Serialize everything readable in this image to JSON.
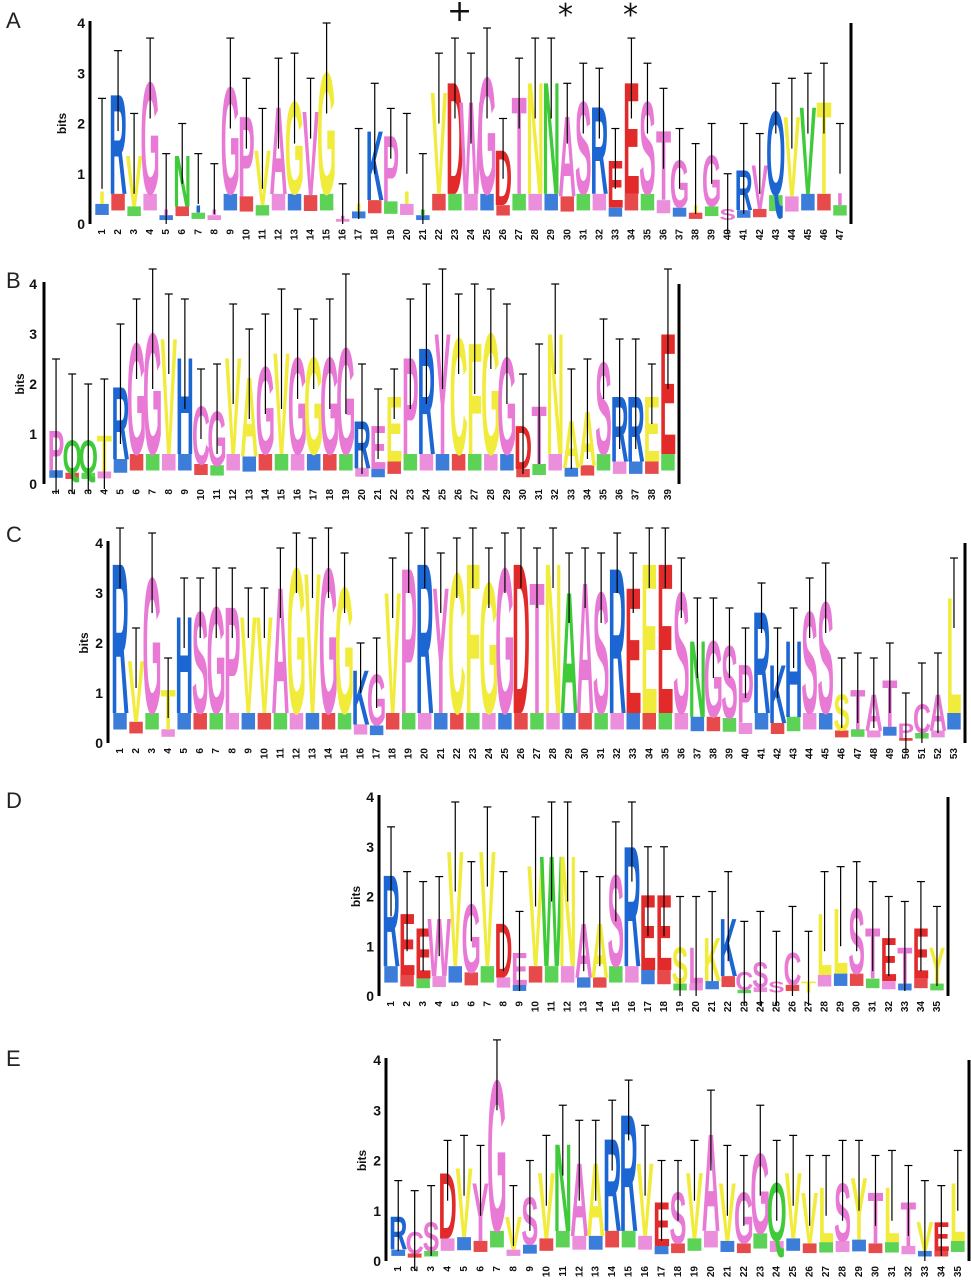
{
  "figure": {
    "annotations": {
      "plus": "+",
      "star1": "*",
      "star2": "*"
    },
    "ylabel": "bits",
    "yticks": [
      "0",
      "1",
      "2",
      "3",
      "4"
    ],
    "colors": {
      "pink": "#e87ad6",
      "yellow": "#f1ec3c",
      "blue": "#1b66d3",
      "red": "#e22a2a",
      "green": "#3fca3a",
      "black": "#000000"
    },
    "panels": [
      {
        "letter": "A",
        "n": 47,
        "top": [
          ".",
          "R",
          "V",
          "G",
          ".",
          "N",
          ".",
          ".",
          "G",
          "P",
          "V",
          "A",
          "G",
          "V",
          "G",
          ".",
          ".",
          "K",
          "P",
          ".",
          ".",
          "V",
          "D",
          "W",
          "G",
          "D",
          "T",
          "N",
          "N",
          "A",
          "S",
          "R",
          "E",
          "E",
          "S",
          "T",
          "G",
          ".",
          "G",
          "S",
          "R",
          "V",
          "Q",
          "V",
          "V",
          "T",
          "."
        ],
        "colors": [
          "yellow",
          "blue",
          "yellow",
          "pink",
          "pink",
          "green",
          "blue",
          "pink",
          "pink",
          "pink",
          "yellow",
          "pink",
          "yellow",
          "pink",
          "yellow",
          "pink",
          "yellow",
          "blue",
          "pink",
          "yellow",
          "green",
          "yellow",
          "red",
          "pink",
          "pink",
          "red",
          "pink",
          "yellow",
          "green",
          "pink",
          "pink",
          "blue",
          "red",
          "red",
          "pink",
          "pink",
          "pink",
          "yellow",
          "pink",
          "pink",
          "blue",
          "pink",
          "blue",
          "yellow",
          "green",
          "yellow",
          "pink"
        ],
        "heights": [
          1.6,
          2.65,
          1.4,
          2.9,
          0.7,
          1.4,
          0.9,
          0.7,
          2.8,
          2.2,
          1.5,
          2.4,
          2.5,
          2.3,
          3.1,
          0.4,
          1.0,
          1.9,
          1.8,
          1.6,
          0.7,
          2.7,
          2.9,
          2.5,
          3.0,
          1.5,
          2.6,
          2.9,
          2.9,
          2.2,
          2.5,
          2.4,
          1.3,
          2.9,
          2.5,
          1.9,
          1.3,
          0.9,
          1.4,
          0.3,
          1.1,
          1.2,
          2.3,
          2.2,
          2.4,
          2.5,
          1.5
        ],
        "errors": [
          0.9,
          0.8,
          0.8,
          0.8,
          0.7,
          0.6,
          0.5,
          0.5,
          0.9,
          0.7,
          0.8,
          0.9,
          0.9,
          0.6,
          0.9,
          0.4,
          0.9,
          0.9,
          0.5,
          0.6,
          0.7,
          0.7,
          0.8,
          0.9,
          0.9,
          0.6,
          0.7,
          0.8,
          0.8,
          0.6,
          0.7,
          0.7,
          0.6,
          0.8,
          0.7,
          0.8,
          0.6,
          0.7,
          0.6,
          0.7,
          0.9,
          0.6,
          0.5,
          0.7,
          0.6,
          0.7,
          0.5
        ]
      },
      {
        "letter": "B",
        "n": 39,
        "top": [
          "P",
          "Q",
          "Q",
          "T",
          "R",
          "G",
          "G",
          "V",
          "H",
          "C",
          "G",
          "V",
          "A",
          "G",
          "V",
          "G",
          "G",
          "G",
          "G",
          "R",
          "E",
          "E",
          "P",
          "R",
          "Y",
          "C",
          "F",
          "G",
          "G",
          "D",
          "T",
          "N",
          "A",
          "A",
          "S",
          "R",
          "R",
          "E",
          "E"
        ],
        "colors": [
          "pink",
          "green",
          "green",
          "yellow",
          "blue",
          "pink",
          "pink",
          "yellow",
          "blue",
          "pink",
          "pink",
          "yellow",
          "yellow",
          "pink",
          "yellow",
          "pink",
          "yellow",
          "pink",
          "pink",
          "blue",
          "pink",
          "yellow",
          "pink",
          "blue",
          "pink",
          "yellow",
          "yellow",
          "yellow",
          "pink",
          "red",
          "pink",
          "yellow",
          "yellow",
          "yellow",
          "pink",
          "blue",
          "blue",
          "yellow",
          "red"
        ],
        "heights": [
          1.1,
          0.9,
          0.9,
          1.0,
          2.0,
          2.9,
          3.1,
          3.0,
          2.6,
          1.6,
          1.5,
          2.6,
          2.2,
          2.4,
          2.7,
          2.6,
          2.6,
          2.6,
          2.8,
          1.3,
          1.2,
          1.8,
          2.6,
          2.8,
          3.1,
          3.0,
          2.9,
          3.1,
          2.6,
          1.2,
          1.6,
          3.1,
          1.3,
          1.5,
          2.5,
          1.8,
          1.8,
          1.8,
          3.1
        ],
        "errors": [
          1.4,
          1.3,
          1.1,
          1.1,
          1.2,
          0.8,
          1.2,
          0.8,
          1.1,
          0.7,
          0.9,
          1.0,
          0.9,
          1.0,
          1.2,
          0.9,
          0.7,
          1.1,
          1.4,
          1.1,
          0.7,
          0.5,
          1.1,
          1.2,
          1.2,
          0.8,
          1.1,
          0.8,
          1.0,
          1.0,
          1.2,
          0.9,
          1.0,
          1.0,
          0.8,
          1.1,
          1.1,
          0.6,
          1.2
        ]
      },
      {
        "letter": "C",
        "n": 53,
        "top": [
          "R",
          "V",
          "G",
          "T",
          "H",
          "S",
          "G",
          "P",
          "V",
          "V",
          "A",
          "G",
          "V",
          "G",
          "G",
          "K",
          "G",
          "V",
          "P",
          "R",
          "Y",
          "C",
          "F",
          "G",
          "G",
          "D",
          "T",
          "N",
          "A",
          "A",
          "S",
          "R",
          "E",
          "E",
          "E",
          "S",
          "N",
          "G",
          "S",
          "P",
          "R",
          "K",
          "H",
          "S",
          "S",
          "S",
          "T",
          "A",
          "T",
          "P",
          "C",
          "A",
          "L"
        ],
        "colors": [
          "blue",
          "yellow",
          "pink",
          "yellow",
          "blue",
          "pink",
          "pink",
          "pink",
          "yellow",
          "yellow",
          "pink",
          "yellow",
          "yellow",
          "pink",
          "yellow",
          "blue",
          "pink",
          "yellow",
          "pink",
          "blue",
          "pink",
          "yellow",
          "yellow",
          "yellow",
          "pink",
          "red",
          "pink",
          "yellow",
          "green",
          "pink",
          "pink",
          "blue",
          "red",
          "yellow",
          "red",
          "pink",
          "green",
          "pink",
          "pink",
          "pink",
          "blue",
          "blue",
          "blue",
          "pink",
          "pink",
          "yellow",
          "pink",
          "pink",
          "pink",
          "pink",
          "pink",
          "pink",
          "yellow"
        ],
        "heights": [
          3.7,
          1.7,
          3.4,
          1.1,
          2.6,
          2.7,
          2.8,
          2.8,
          2.6,
          2.6,
          3.2,
          3.6,
          3.5,
          3.6,
          3.2,
          1.5,
          1.4,
          3.1,
          3.6,
          3.7,
          3.2,
          3.5,
          3.7,
          3.3,
          3.6,
          3.7,
          3.3,
          3.7,
          3.1,
          3.3,
          3.1,
          3.6,
          3.2,
          3.7,
          3.7,
          3.1,
          2.1,
          2.1,
          2.0,
          1.6,
          2.7,
          1.6,
          2.1,
          2.7,
          2.9,
          1.0,
          1.1,
          1.0,
          1.3,
          0.4,
          0.8,
          1.0,
          3.0
        ],
        "errors": [
          0.6,
          0.6,
          0.8,
          0.6,
          0.7,
          0.6,
          0.7,
          0.7,
          0.5,
          0.5,
          0.7,
          0.6,
          0.6,
          0.7,
          0.6,
          0.5,
          0.7,
          0.6,
          0.6,
          0.6,
          0.6,
          0.6,
          0.6,
          0.6,
          0.6,
          0.6,
          0.6,
          0.6,
          0.7,
          0.6,
          0.7,
          0.6,
          0.6,
          0.6,
          0.6,
          0.6,
          0.8,
          0.8,
          0.7,
          0.7,
          0.5,
          0.7,
          0.6,
          0.6,
          0.7,
          0.7,
          0.7,
          0.7,
          0.7,
          0.6,
          0.8,
          0.8,
          0.7
        ]
      },
      {
        "letter": "D",
        "n": 35,
        "top": [
          "R",
          "E",
          "E",
          "W",
          "V",
          "G",
          "V",
          "D",
          "E",
          "V",
          "W",
          "N",
          "A",
          "A",
          "S",
          "R",
          "E",
          "E",
          "S",
          "L",
          "K",
          "K",
          "C",
          "S",
          "S",
          "C",
          "T",
          "L",
          "L",
          "S",
          "T",
          "E",
          "T",
          "E",
          "Y"
        ],
        "colors": [
          "blue",
          "red",
          "red",
          "pink",
          "yellow",
          "pink",
          "yellow",
          "red",
          "pink",
          "yellow",
          "green",
          "yellow",
          "pink",
          "yellow",
          "pink",
          "blue",
          "red",
          "red",
          "yellow",
          "pink",
          "yellow",
          "blue",
          "pink",
          "pink",
          "pink",
          "pink",
          "yellow",
          "yellow",
          "yellow",
          "pink",
          "pink",
          "red",
          "pink",
          "red",
          "yellow"
        ],
        "heights": [
          2.5,
          1.7,
          1.4,
          1.6,
          3.0,
          1.9,
          3.0,
          1.5,
          0.9,
          2.7,
          2.9,
          2.9,
          1.5,
          1.5,
          2.5,
          3.1,
          2.1,
          2.1,
          1.0,
          1.0,
          1.2,
          1.6,
          0.5,
          0.7,
          0.3,
          0.9,
          0.3,
          1.7,
          1.8,
          1.8,
          1.4,
          1.2,
          1.0,
          1.4,
          1.0
        ],
        "errors": [
          0.9,
          0.8,
          0.9,
          0.8,
          0.9,
          0.8,
          0.8,
          1.0,
          0.8,
          0.9,
          1.0,
          1.0,
          1.0,
          0.9,
          1.0,
          0.8,
          0.9,
          0.9,
          1.0,
          1.0,
          0.9,
          0.9,
          1.0,
          1.0,
          1.0,
          0.9,
          1.0,
          0.8,
          0.8,
          0.9,
          0.9,
          0.8,
          0.9,
          0.9,
          0.8
        ]
      },
      {
        "letter": "E",
        "n": 35,
        "top": [
          "R",
          "C",
          "S",
          "D",
          "V",
          "Y",
          "G",
          "V",
          "S",
          "V",
          "N",
          "A",
          "A",
          "R",
          "R",
          "V",
          "E",
          "S",
          "V",
          "A",
          "V",
          "G",
          "G",
          "Q",
          "V",
          "V",
          "L",
          "S",
          "Y",
          "T",
          "L",
          "T",
          "V",
          "E",
          "L"
        ],
        "colors": [
          "blue",
          "pink",
          "pink",
          "red",
          "yellow",
          "pink",
          "pink",
          "yellow",
          "pink",
          "yellow",
          "green",
          "pink",
          "yellow",
          "blue",
          "blue",
          "yellow",
          "red",
          "pink",
          "yellow",
          "pink",
          "yellow",
          "pink",
          "pink",
          "green",
          "yellow",
          "yellow",
          "yellow",
          "pink",
          "yellow",
          "pink",
          "yellow",
          "pink",
          "yellow",
          "red",
          "yellow"
        ],
        "heights": [
          0.9,
          0.6,
          0.8,
          1.8,
          1.9,
          1.6,
          3.7,
          0.9,
          1.3,
          1.8,
          2.4,
          2.0,
          2.0,
          2.5,
          3.0,
          2.0,
          1.2,
          1.4,
          1.8,
          2.6,
          1.6,
          1.4,
          2.2,
          1.6,
          1.8,
          1.4,
          1.5,
          1.6,
          1.7,
          1.4,
          1.5,
          1.2,
          0.8,
          0.8,
          1.6
        ],
        "errors": [
          0.7,
          0.8,
          0.7,
          0.6,
          0.6,
          0.7,
          0.7,
          0.6,
          0.7,
          0.7,
          0.7,
          0.8,
          0.8,
          0.7,
          0.6,
          0.7,
          0.8,
          0.6,
          0.6,
          0.8,
          0.7,
          0.7,
          0.9,
          0.8,
          0.7,
          0.7,
          0.6,
          0.8,
          0.7,
          0.7,
          0.7,
          0.7,
          0.8,
          0.7,
          0.6
        ]
      }
    ]
  }
}
